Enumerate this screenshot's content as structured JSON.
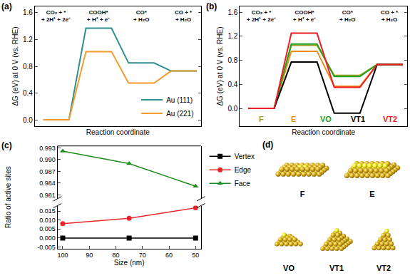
{
  "chart_data": [
    {
      "panel": "(a)",
      "type": "line",
      "line_style": "step",
      "x_label": "Reaction coordinate",
      "y_label": "ΔG (eV) at 0 V (vs. RHE)",
      "categories": [
        "CO₂ + *\n+ 2H⁺ + 2e⁻",
        "COOH*\n+ H⁺ + e⁻",
        "CO*\n+ H₂O",
        "CO + *\n+ H₂O"
      ],
      "series": [
        {
          "name": "Au (111)",
          "color": "#2f8f8f",
          "values": [
            0,
            1.37,
            0.85,
            0.73
          ]
        },
        {
          "name": "Au (221)",
          "color": "#f59a2c",
          "values": [
            0,
            1.02,
            0.55,
            0.73
          ]
        }
      ],
      "ylim": [
        -0.1,
        1.7
      ],
      "yticks": [
        {
          "value": 0,
          "label": "0.0"
        },
        0.4,
        0.8,
        1.2,
        1.6
      ],
      "tick_labels": "y",
      "legend": "lower right",
      "grid": false
    },
    {
      "panel": "(b)",
      "type": "line",
      "line_style": "step",
      "x_label": "Reaction coordinate",
      "y_label": "ΔG (eV) at 0 V (vs. RHE)",
      "categories": [
        "CO₂ + *\n+ 2H⁺ + 2e⁻",
        "COOH*\n+ H⁺ + e⁻",
        "CO*\n+ H₂O",
        "CO + *\n+ H₂O"
      ],
      "series": [
        {
          "name": "F",
          "color": "#9c9c1c",
          "values": [
            0,
            1.05,
            0.55,
            0.73
          ]
        },
        {
          "name": "E",
          "color": "#f08c1c",
          "values": [
            0,
            0.95,
            0.37,
            0.73
          ]
        },
        {
          "name": "VO",
          "color": "#21a121",
          "values": [
            0,
            1.07,
            0.53,
            0.73
          ]
        },
        {
          "name": "VT1",
          "color": "#000000",
          "values": [
            0,
            0.77,
            -0.08,
            0.73
          ]
        },
        {
          "name": "VT2",
          "color": "#ee1c24",
          "values": [
            0,
            1.25,
            0.35,
            0.73
          ]
        }
      ],
      "ylim": [
        -0.3,
        1.7
      ],
      "yticks": [
        {
          "value": 0,
          "label": "0.0"
        },
        0.4,
        0.8,
        1.2,
        1.6
      ],
      "tick_labels": "y",
      "legend": "bottom",
      "grid": false
    },
    {
      "panel": "(c)",
      "type": "line",
      "x_label": "Size (nm)",
      "y_label": "Ratio of active sites",
      "x": [
        100,
        75,
        50
      ],
      "series": [
        {
          "name": "Vertex",
          "color": "#000000",
          "marker": "square",
          "values": [
            0,
            0,
            0
          ]
        },
        {
          "name": "Edge",
          "color": "#e8262a",
          "marker": "circle",
          "values": [
            0.008,
            0.011,
            0.0168
          ]
        },
        {
          "name": "Face",
          "color": "#1e8c1e",
          "marker": "triangle-up",
          "values": [
            0.9922,
            0.989,
            0.9832
          ],
          "axis": "y2"
        }
      ],
      "xlim": [
        102,
        48
      ],
      "xticks": [
        100,
        90,
        80,
        70,
        60,
        50
      ],
      "ylim": [
        -0.006,
        0.018
      ],
      "yticks": [
        -0.005,
        {
          "value": 0,
          "label": "0.000"
        },
        0.005,
        {
          "value": 0.01,
          "label": "0.010"
        },
        0.015
      ],
      "y2lim": [
        0.98,
        0.9935
      ],
      "y2ticks": [
        0.981,
        0.984,
        0.987,
        {
          "value": 0.99,
          "label": "0.990"
        },
        0.993
      ],
      "legend": "upper right",
      "grid": false
    }
  ],
  "panel_d": {
    "panel": "(d)",
    "labels": [
      "F",
      "E",
      "VO",
      "VT1",
      "VT2"
    ]
  }
}
